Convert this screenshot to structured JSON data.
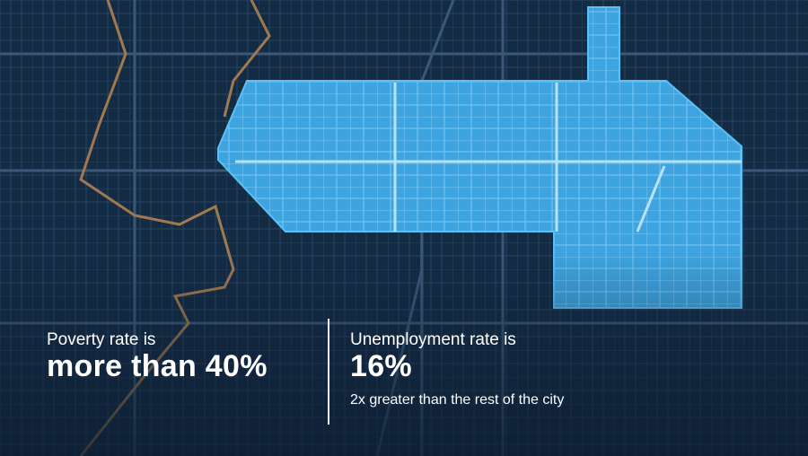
{
  "stats": [
    {
      "label": "Poverty rate is",
      "value": "more than 40%"
    },
    {
      "label": "Unemployment rate is",
      "value": "16%",
      "note": "2x greater than the rest of the city"
    }
  ]
}
